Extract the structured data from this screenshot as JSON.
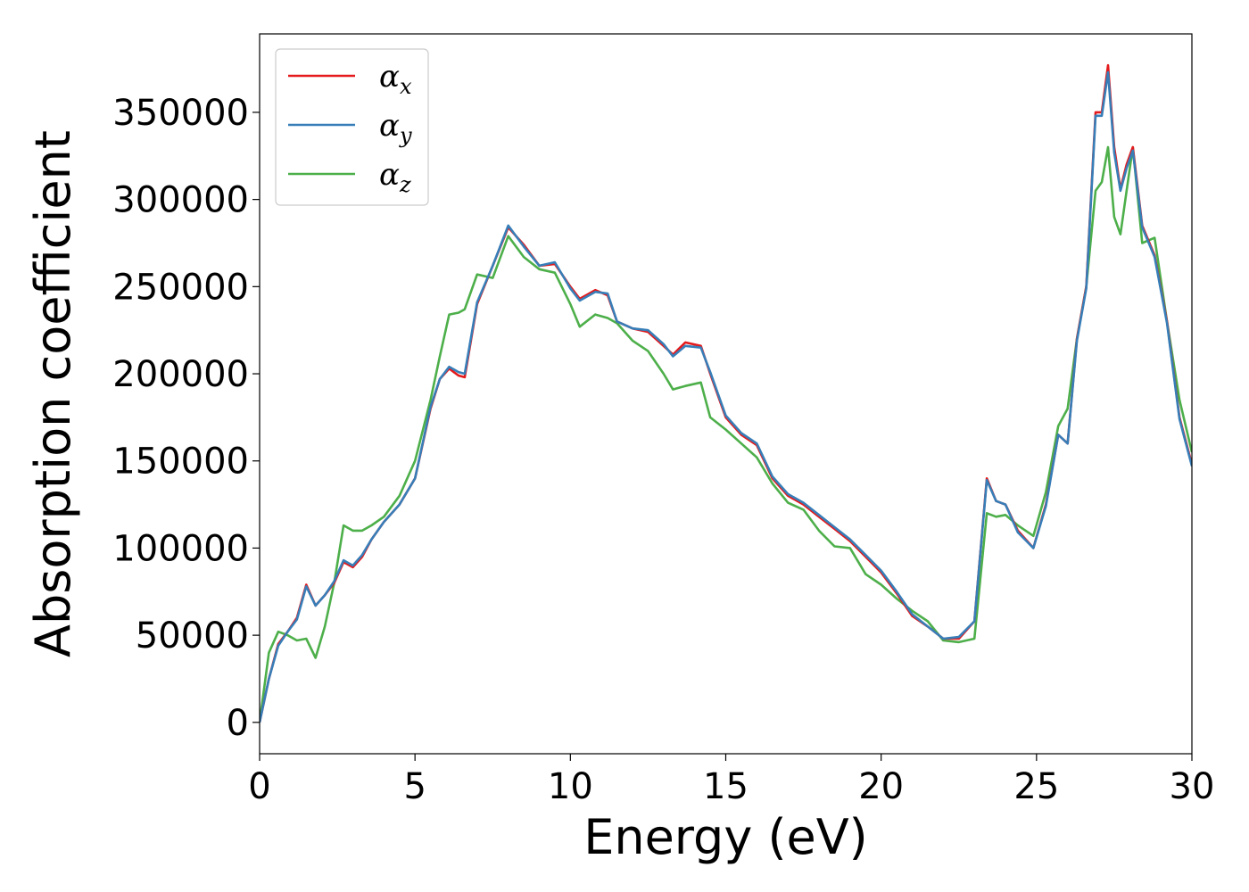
{
  "chart_data": {
    "type": "line",
    "title": "",
    "xlabel": "Energy (eV)",
    "ylabel": "Absorption coefficient",
    "xlim": [
      0,
      30
    ],
    "ylim": [
      -18000,
      395000
    ],
    "xticks": [
      0,
      5,
      10,
      15,
      20,
      25,
      30
    ],
    "xtick_labels": [
      "0",
      "5",
      "10",
      "15",
      "20",
      "25",
      "30"
    ],
    "yticks": [
      0,
      50000,
      100000,
      150000,
      200000,
      250000,
      300000,
      350000
    ],
    "ytick_labels": [
      "0",
      "50000",
      "100000",
      "150000",
      "200000",
      "250000",
      "300000",
      "350000"
    ],
    "grid": false,
    "legend_position": "top-left",
    "series": [
      {
        "name": "αx",
        "legend_base": "α",
        "legend_sub": "x",
        "color": "#e41a1c",
        "x": [
          0,
          0.3,
          0.6,
          0.9,
          1.2,
          1.5,
          1.8,
          2.1,
          2.4,
          2.7,
          3.0,
          3.3,
          3.6,
          4.0,
          4.5,
          5.0,
          5.5,
          5.8,
          6.1,
          6.4,
          6.6,
          7.0,
          7.5,
          8.0,
          8.5,
          9.0,
          9.5,
          10.0,
          10.3,
          10.8,
          11.2,
          11.5,
          12.0,
          12.5,
          13.0,
          13.3,
          13.7,
          14.2,
          14.5,
          15.0,
          15.5,
          16.0,
          16.5,
          17.0,
          17.5,
          18.0,
          18.5,
          19.0,
          19.5,
          20.0,
          20.5,
          21.0,
          21.5,
          22.0,
          22.5,
          23.0,
          23.4,
          23.7,
          24.0,
          24.4,
          24.9,
          25.3,
          25.7,
          26.0,
          26.3,
          26.6,
          26.9,
          27.1,
          27.3,
          27.5,
          27.7,
          27.9,
          28.1,
          28.4,
          28.8,
          29.2,
          29.6,
          30.0
        ],
        "values": [
          0,
          25000,
          45000,
          52000,
          60000,
          79000,
          67000,
          73000,
          80000,
          92000,
          89000,
          95000,
          105000,
          115000,
          125000,
          140000,
          180000,
          197000,
          203000,
          199000,
          198000,
          240000,
          262000,
          284000,
          274000,
          262000,
          263000,
          250000,
          243000,
          248000,
          245000,
          230000,
          226000,
          224000,
          216000,
          211000,
          218000,
          216000,
          200000,
          175000,
          165000,
          159000,
          140000,
          130000,
          125000,
          118000,
          111000,
          104000,
          95000,
          86000,
          74000,
          61000,
          55000,
          48000,
          48000,
          58000,
          140000,
          127000,
          125000,
          110000,
          100000,
          125000,
          165000,
          160000,
          220000,
          250000,
          350000,
          350000,
          377000,
          330000,
          306000,
          320000,
          330000,
          285000,
          268000,
          230000,
          175000,
          148000
        ]
      },
      {
        "name": "αy",
        "legend_base": "α",
        "legend_sub": "y",
        "color": "#377eb8",
        "x": [
          0,
          0.3,
          0.6,
          0.9,
          1.2,
          1.5,
          1.8,
          2.1,
          2.4,
          2.7,
          3.0,
          3.3,
          3.6,
          4.0,
          4.5,
          5.0,
          5.5,
          5.8,
          6.1,
          6.4,
          6.6,
          7.0,
          7.5,
          8.0,
          8.5,
          9.0,
          9.5,
          10.0,
          10.3,
          10.8,
          11.2,
          11.5,
          12.0,
          12.5,
          13.0,
          13.3,
          13.7,
          14.2,
          14.5,
          15.0,
          15.5,
          16.0,
          16.5,
          17.0,
          17.5,
          18.0,
          18.5,
          19.0,
          19.5,
          20.0,
          20.5,
          21.0,
          21.5,
          22.0,
          22.5,
          23.0,
          23.4,
          23.7,
          24.0,
          24.4,
          24.9,
          25.3,
          25.7,
          26.0,
          26.3,
          26.6,
          26.9,
          27.1,
          27.3,
          27.5,
          27.7,
          27.9,
          28.1,
          28.4,
          28.8,
          29.2,
          29.6,
          30.0
        ],
        "values": [
          0,
          25000,
          44000,
          52000,
          59000,
          78000,
          67000,
          73000,
          81000,
          93000,
          90000,
          96000,
          105000,
          115000,
          125000,
          140000,
          181000,
          197000,
          204000,
          201000,
          200000,
          241000,
          262000,
          285000,
          273000,
          262000,
          264000,
          249000,
          242000,
          247000,
          246000,
          230000,
          226000,
          225000,
          217000,
          210000,
          216000,
          215000,
          201000,
          176000,
          166000,
          160000,
          141000,
          131000,
          126000,
          119000,
          112000,
          105000,
          96000,
          87000,
          75000,
          62000,
          55000,
          48000,
          49000,
          58000,
          139000,
          127000,
          125000,
          109000,
          100000,
          124000,
          165000,
          160000,
          219000,
          249000,
          348000,
          348000,
          373000,
          327000,
          305000,
          318000,
          328000,
          284000,
          267000,
          229000,
          174000,
          147000
        ]
      },
      {
        "name": "αz",
        "legend_base": "α",
        "legend_sub": "z",
        "color": "#4daf4a",
        "x": [
          0,
          0.3,
          0.6,
          0.9,
          1.2,
          1.5,
          1.8,
          2.1,
          2.4,
          2.7,
          3.0,
          3.3,
          3.6,
          4.0,
          4.5,
          5.0,
          5.5,
          5.8,
          6.1,
          6.4,
          6.6,
          7.0,
          7.5,
          8.0,
          8.5,
          9.0,
          9.5,
          10.0,
          10.3,
          10.8,
          11.2,
          11.5,
          12.0,
          12.5,
          13.0,
          13.3,
          13.7,
          14.2,
          14.5,
          15.0,
          15.5,
          16.0,
          16.5,
          17.0,
          17.5,
          18.0,
          18.5,
          19.0,
          19.5,
          20.0,
          20.5,
          21.0,
          21.5,
          22.0,
          22.5,
          23.0,
          23.4,
          23.7,
          24.0,
          24.4,
          24.9,
          25.3,
          25.7,
          26.0,
          26.3,
          26.6,
          26.9,
          27.1,
          27.3,
          27.5,
          27.7,
          27.9,
          28.1,
          28.4,
          28.8,
          29.2,
          29.6,
          30.0
        ],
        "values": [
          0,
          40000,
          52000,
          50000,
          47000,
          48000,
          37000,
          55000,
          80000,
          113000,
          110000,
          110000,
          113000,
          118000,
          130000,
          150000,
          185000,
          210000,
          234000,
          235000,
          237000,
          257000,
          255000,
          279000,
          267000,
          260000,
          258000,
          240000,
          227000,
          234000,
          232000,
          229000,
          219000,
          213000,
          200000,
          191000,
          193000,
          195000,
          175000,
          168000,
          160000,
          152000,
          137000,
          126000,
          122000,
          110000,
          101000,
          100000,
          85000,
          79000,
          71000,
          64000,
          58000,
          47000,
          46000,
          48000,
          120000,
          118000,
          119000,
          113000,
          107000,
          132000,
          170000,
          180000,
          220000,
          250000,
          305000,
          310000,
          330000,
          290000,
          280000,
          305000,
          330000,
          275000,
          278000,
          230000,
          185000,
          155000
        ]
      }
    ]
  }
}
